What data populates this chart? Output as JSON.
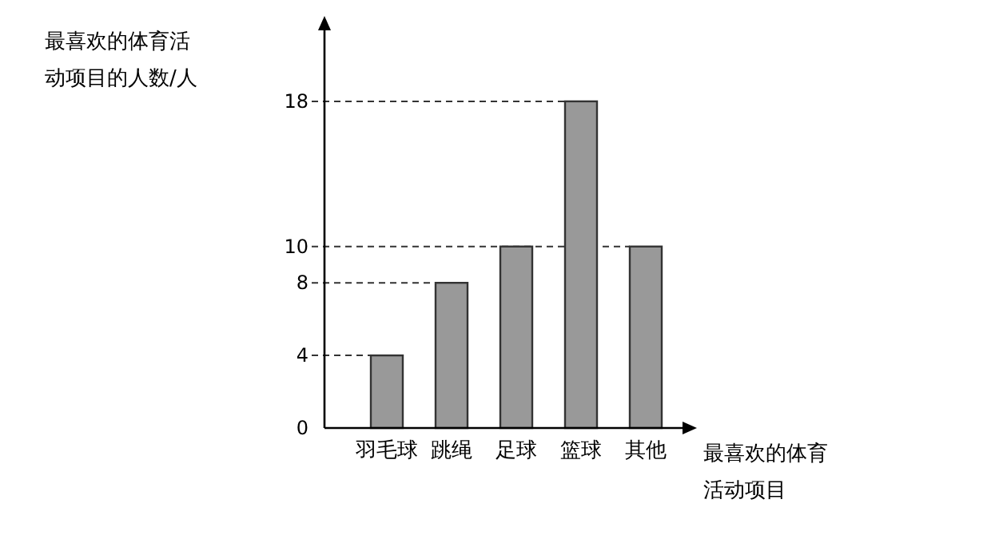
{
  "chart_data": {
    "type": "bar",
    "ylabel": "最喜欢的体育活动项目的人数/人",
    "xlabel": "最喜欢的体育活动项目",
    "categories": [
      "羽毛球",
      "跳绳",
      "足球",
      "篮球",
      "其他"
    ],
    "values": [
      4,
      8,
      10,
      18,
      10
    ],
    "color": "#999999",
    "ylim": [
      0,
      22
    ],
    "yticks": [
      0,
      4,
      8,
      10,
      18
    ],
    "ref_lines": [
      {
        "axis": "y",
        "value": 4,
        "line_style": "dashed"
      },
      {
        "axis": "y",
        "value": 8,
        "line_style": "dashed"
      },
      {
        "axis": "y",
        "value": 10,
        "line_style": "dashed"
      },
      {
        "axis": "y",
        "value": 18,
        "line_style": "dashed"
      }
    ]
  }
}
